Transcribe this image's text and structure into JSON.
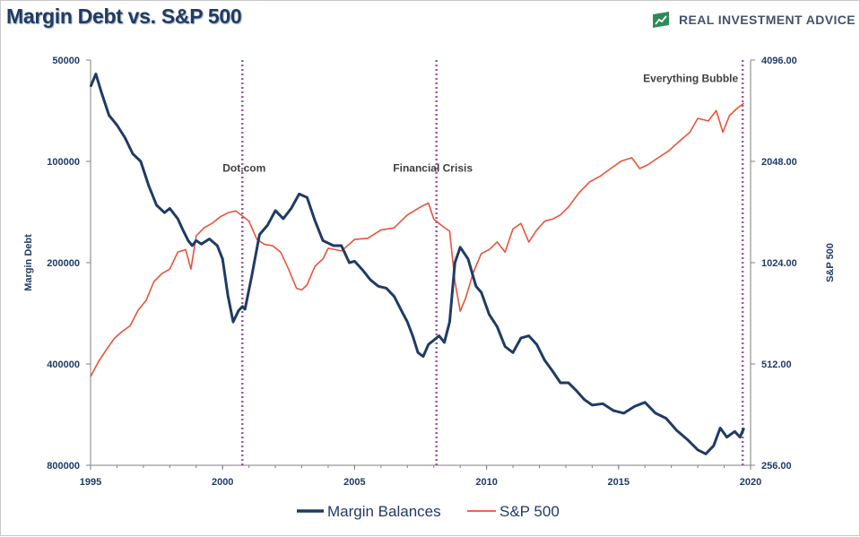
{
  "header": {
    "title": "Margin Debt vs. S&P 500",
    "brand": "REAL INVESTMENT ADVICE"
  },
  "colors": {
    "margin_series": "#1f3b66",
    "sp500_series": "#e8533a",
    "event_lines": "#9b5a9e",
    "text": "#1f3b66"
  },
  "icons": {
    "logo": "chart-logo-icon"
  },
  "chart_data": {
    "type": "line",
    "title": "Margin Debt vs. S&P 500",
    "xlabel": "",
    "ylabel": "Margin Debt",
    "y2label": "S&P 500",
    "xlim": [
      1995,
      2020
    ],
    "x_ticks": [
      "1995",
      "2000",
      "2005",
      "2010",
      "2015",
      "2020"
    ],
    "y_left_scale": "log, inverted",
    "y_left_ticks": [
      "50000",
      "100000",
      "200000",
      "400000",
      "800000"
    ],
    "y_left_lim": [
      50000,
      800000
    ],
    "y_right_scale": "log2",
    "y_right_ticks": [
      "4096.00",
      "2048.00",
      "1024.00",
      "512.00",
      "256.00"
    ],
    "y_right_lim": [
      256,
      4096
    ],
    "grid": false,
    "legend": "bottom-center",
    "series": [
      {
        "name": "Margin Balances",
        "axis": "left",
        "x": [
          1995.0,
          1995.2,
          1995.4,
          1995.7,
          1996.0,
          1996.3,
          1996.6,
          1996.9,
          1997.2,
          1997.5,
          1997.8,
          1998.0,
          1998.3,
          1998.5,
          1998.7,
          1998.85,
          1999.0,
          1999.2,
          1999.5,
          1999.8,
          2000.0,
          2000.2,
          2000.4,
          2000.6,
          2000.75,
          2000.85,
          2001.1,
          2001.4,
          2001.7,
          2002.0,
          2002.3,
          2002.6,
          2002.9,
          2003.2,
          2003.5,
          2003.8,
          2004.0,
          2004.2,
          2004.5,
          2004.8,
          2005.0,
          2005.3,
          2005.6,
          2005.9,
          2006.2,
          2006.5,
          2006.8,
          2007.0,
          2007.2,
          2007.4,
          2007.6,
          2007.8,
          2008.0,
          2008.2,
          2008.4,
          2008.6,
          2008.8,
          2009.0,
          2009.3,
          2009.6,
          2009.8,
          2010.1,
          2010.4,
          2010.7,
          2011.0,
          2011.3,
          2011.6,
          2011.9,
          2012.2,
          2012.5,
          2012.8,
          2013.1,
          2013.4,
          2013.7,
          2014.0,
          2014.4,
          2014.8,
          2015.2,
          2015.6,
          2016.0,
          2016.4,
          2016.8,
          2017.2,
          2017.6,
          2018.0,
          2018.3,
          2018.6,
          2018.85,
          2019.1,
          2019.4,
          2019.6,
          2019.75
        ],
        "values": [
          60000,
          55000,
          62000,
          73000,
          78000,
          85000,
          95000,
          100000,
          118000,
          135000,
          142000,
          138000,
          148000,
          160000,
          172000,
          178000,
          172000,
          176000,
          170000,
          178000,
          195000,
          250000,
          300000,
          278000,
          270000,
          275000,
          220000,
          165000,
          155000,
          140000,
          148000,
          138000,
          125000,
          128000,
          150000,
          172000,
          175000,
          178000,
          178000,
          200000,
          198000,
          210000,
          225000,
          235000,
          238000,
          252000,
          280000,
          300000,
          330000,
          370000,
          380000,
          350000,
          340000,
          330000,
          345000,
          300000,
          200000,
          180000,
          195000,
          235000,
          245000,
          285000,
          310000,
          355000,
          370000,
          335000,
          330000,
          350000,
          390000,
          420000,
          455000,
          455000,
          480000,
          510000,
          530000,
          525000,
          550000,
          560000,
          535000,
          520000,
          560000,
          580000,
          630000,
          670000,
          720000,
          740000,
          700000,
          620000,
          660000,
          635000,
          660000,
          620000
        ]
      },
      {
        "name": "S&P 500",
        "axis": "right",
        "x": [
          1995.0,
          1995.3,
          1995.6,
          1995.9,
          1996.2,
          1996.5,
          1996.8,
          1997.1,
          1997.4,
          1997.7,
          1998.0,
          1998.3,
          1998.6,
          1998.8,
          1999.0,
          1999.3,
          1999.6,
          1999.9,
          2000.2,
          2000.5,
          2000.8,
          2001.0,
          2001.3,
          2001.6,
          2001.9,
          2002.2,
          2002.5,
          2002.8,
          2003.0,
          2003.2,
          2003.5,
          2003.8,
          2004.0,
          2004.5,
          2005.0,
          2005.5,
          2006.0,
          2006.5,
          2007.0,
          2007.5,
          2007.8,
          2008.0,
          2008.3,
          2008.6,
          2008.8,
          2009.0,
          2009.2,
          2009.5,
          2009.8,
          2010.1,
          2010.4,
          2010.7,
          2011.0,
          2011.3,
          2011.6,
          2011.9,
          2012.2,
          2012.5,
          2012.8,
          2013.1,
          2013.5,
          2013.9,
          2014.3,
          2014.7,
          2015.1,
          2015.5,
          2015.8,
          2016.1,
          2016.5,
          2016.9,
          2017.3,
          2017.7,
          2018.0,
          2018.4,
          2018.7,
          2018.95,
          2019.2,
          2019.5,
          2019.75
        ],
        "values": [
          470,
          520,
          565,
          610,
          640,
          665,
          740,
          790,
          900,
          950,
          980,
          1100,
          1120,
          980,
          1230,
          1300,
          1340,
          1400,
          1440,
          1460,
          1400,
          1360,
          1200,
          1160,
          1150,
          1100,
          980,
          860,
          850,
          880,
          1000,
          1050,
          1130,
          1110,
          1200,
          1210,
          1280,
          1300,
          1420,
          1500,
          1540,
          1380,
          1320,
          1270,
          900,
          735,
          800,
          960,
          1090,
          1120,
          1180,
          1100,
          1290,
          1340,
          1180,
          1280,
          1360,
          1380,
          1420,
          1500,
          1650,
          1780,
          1850,
          1950,
          2050,
          2100,
          1950,
          2000,
          2100,
          2200,
          2350,
          2500,
          2750,
          2700,
          2900,
          2500,
          2800,
          2950,
          3050
        ]
      }
    ],
    "annotations": [
      {
        "text": "Dot.com",
        "x": 2000.75,
        "y": 120000
      },
      {
        "text": "Financial Crisis",
        "x": 2008.1,
        "y": 120000
      },
      {
        "text": "Everything Bubble",
        "x": 2019.7,
        "y": 60000
      }
    ],
    "event_lines_x": [
      2000.75,
      2008.1,
      2019.7
    ]
  }
}
